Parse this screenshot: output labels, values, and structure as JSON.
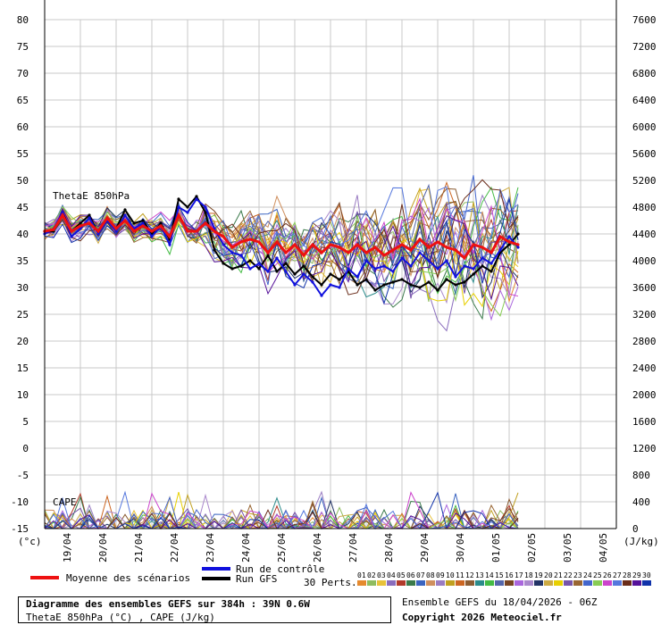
{
  "chart_data": {
    "type": "line",
    "title": "Diagramme des ensembles GEFS sur 384h : 39N 0.6W",
    "subtitle": "ThetaE 850hPa (°C) , CAPE (J/kg)",
    "left_axis": {
      "unit": "(°c)",
      "ticks": [
        80,
        75,
        70,
        65,
        60,
        55,
        50,
        45,
        40,
        35,
        30,
        25,
        20,
        15,
        10,
        5,
        0,
        -5,
        -10,
        -15
      ],
      "range": [
        -15,
        80
      ]
    },
    "right_axis": {
      "unit": "(J/kg)",
      "ticks": [
        7600,
        7200,
        6800,
        6400,
        6000,
        5600,
        5200,
        4800,
        4400,
        4000,
        3600,
        3200,
        2800,
        2400,
        2000,
        1600,
        1200,
        800,
        400,
        0
      ],
      "range": [
        0,
        7600
      ]
    },
    "x_axis": {
      "labels": [
        "19/04",
        "20/04",
        "21/04",
        "22/04",
        "23/04",
        "24/04",
        "25/04",
        "26/04",
        "27/04",
        "28/04",
        "29/04",
        "30/04",
        "01/05",
        "02/05",
        "03/05",
        "04/05"
      ],
      "grid": true
    },
    "panel_labels": {
      "thetae": "ThetaE 850hPa",
      "cape": "CAPE"
    },
    "series": [
      {
        "name": "Moyenne des scénarios",
        "color": "#ee1111",
        "values": [
          40.5,
          40.8,
          43.5,
          40.5,
          41.5,
          42.0,
          40.5,
          43.0,
          41.0,
          42.5,
          40.5,
          41.5,
          40.5,
          41.5,
          39.5,
          43.5,
          40.5,
          40.5,
          42.0,
          40.5,
          39.5,
          37.5,
          38.5,
          39.0,
          38.5,
          36.5,
          38.5,
          36.5,
          38.0,
          36.0,
          38.0,
          36.5,
          38.0,
          37.5,
          36.5,
          38.0,
          36.5,
          37.5,
          36.0,
          37.0,
          38.0,
          37.0,
          39.0,
          37.5,
          38.5,
          37.5,
          37.0,
          35.5,
          38.0,
          37.5,
          36.5,
          39.5,
          38.5,
          38.0
        ]
      },
      {
        "name": "Run de contrôle",
        "color": "#1010dd",
        "values": [
          40.0,
          41.0,
          44.0,
          39.5,
          41.0,
          43.0,
          40.0,
          42.5,
          40.5,
          43.5,
          41.0,
          42.0,
          39.5,
          41.5,
          38.0,
          45.0,
          44.0,
          46.5,
          45.0,
          41.0,
          38.0,
          36.5,
          36.0,
          33.5,
          34.5,
          33.0,
          35.5,
          33.0,
          30.5,
          32.5,
          31.0,
          28.5,
          30.5,
          30.0,
          33.5,
          32.0,
          35.0,
          33.5,
          34.0,
          33.0,
          35.5,
          34.0,
          36.5,
          35.0,
          33.5,
          35.0,
          32.0,
          34.0,
          33.5,
          35.5,
          34.5,
          37.0,
          39.5,
          37.5
        ]
      },
      {
        "name": "Run GFS",
        "color": "#000000",
        "values": [
          40.5,
          40.5,
          44.0,
          40.5,
          42.0,
          43.5,
          40.0,
          42.5,
          41.0,
          44.5,
          42.0,
          42.5,
          40.0,
          42.0,
          39.0,
          46.5,
          45.0,
          47.0,
          44.0,
          37.0,
          34.5,
          33.5,
          34.0,
          35.0,
          33.5,
          36.0,
          33.0,
          34.5,
          32.5,
          34.0,
          32.0,
          30.5,
          32.5,
          31.5,
          33.0,
          30.5,
          31.5,
          29.5,
          30.5,
          31.0,
          31.5,
          30.5,
          30.0,
          31.0,
          29.5,
          31.5,
          30.5,
          31.0,
          32.5,
          34.0,
          33.0,
          36.5,
          38.0,
          40.0
        ]
      }
    ],
    "legend": {
      "mean": "Moyenne des scénarios",
      "control": "Run de contrôle",
      "gfs": "Run GFS",
      "perts_label": "30 Perts.",
      "perts_numbers": [
        "01",
        "02",
        "03",
        "04",
        "05",
        "06",
        "07",
        "08",
        "09",
        "10",
        "11",
        "12",
        "13",
        "14",
        "15",
        "16",
        "17",
        "18",
        "19",
        "20",
        "21",
        "22",
        "23",
        "24",
        "25",
        "26",
        "27",
        "28",
        "29",
        "30"
      ],
      "perts_colors": [
        "#e58a2e",
        "#8fbc5f",
        "#e8c23a",
        "#8a6dbd",
        "#b23a2a",
        "#3a7a4a",
        "#3a64c0",
        "#cf8f5e",
        "#9a7cc2",
        "#c0a020",
        "#cc6622",
        "#8b5c33",
        "#2b8b8b",
        "#44bb44",
        "#5566aa",
        "#774422",
        "#aa66dd",
        "#aa88cc",
        "#223366",
        "#ccaa44",
        "#e8d000",
        "#7755aa",
        "#996633",
        "#4466cc",
        "#88cc55",
        "#cc44cc",
        "#5577dd",
        "#6a2c1a",
        "#551199",
        "#1133aa"
      ]
    },
    "footer": {
      "title": "Diagramme des ensembles GEFS sur 384h : 39N 0.6W",
      "subtitle": "ThetaE 850hPa (°C) , CAPE (J/kg)",
      "run": "Ensemble GEFS du 18/04/2026 - 06Z",
      "copyright": "Copyright 2026 Meteociel.fr"
    }
  }
}
